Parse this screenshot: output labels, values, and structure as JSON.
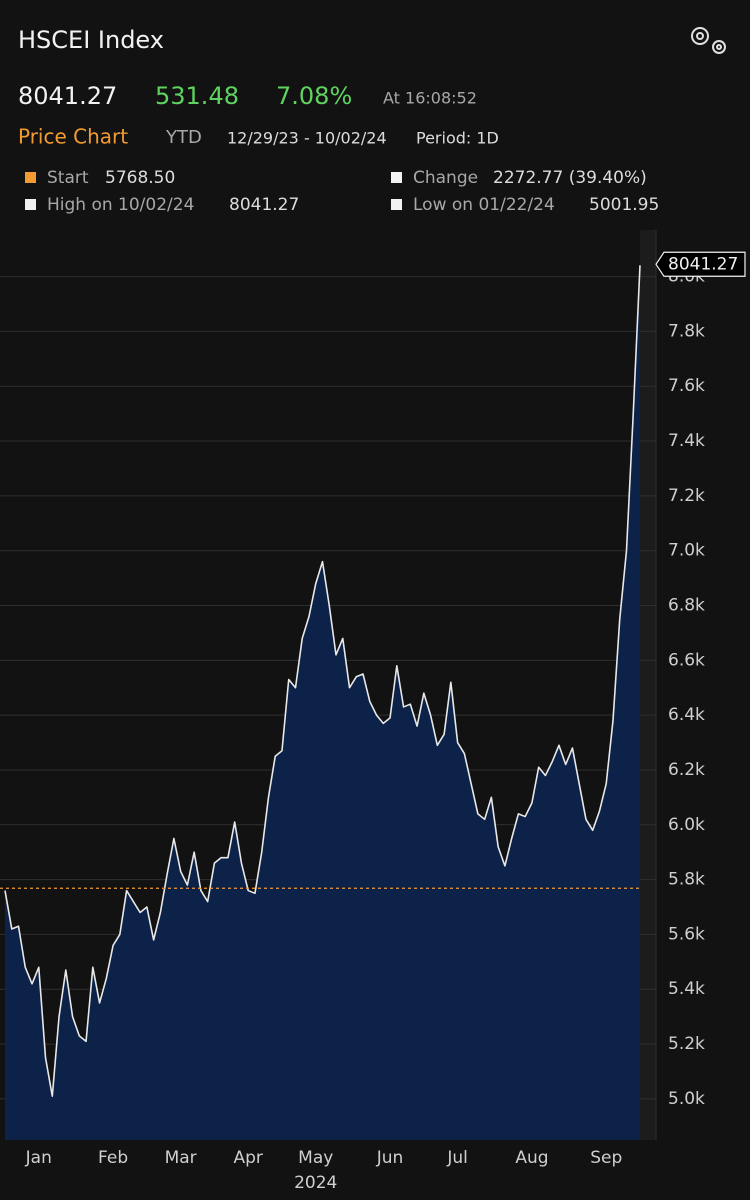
{
  "header": {
    "title": "HSCEI Index",
    "price": "8041.27",
    "change": "531.48",
    "pct_change": "7.08%",
    "time": "At 16:08:52",
    "tab": "Price Chart",
    "range": "YTD",
    "dates": "12/29/23 - 10/02/24",
    "period": "Period: 1D"
  },
  "stats": [
    {
      "name": "Start",
      "value": "5768.50"
    },
    {
      "name": "Change",
      "value": "2272.77 (39.40%)"
    },
    {
      "name": "High on 10/02/24",
      "value": "8041.27"
    },
    {
      "name": "Low on 01/22/24",
      "value": "5001.95"
    }
  ],
  "chart_data": {
    "type": "area",
    "color": "#e8e8e8",
    "fill": "#0c2248",
    "categories": [
      null,
      null,
      null,
      null,
      null,
      "Jan",
      null,
      null,
      null,
      null,
      null,
      null,
      null,
      null,
      null,
      null,
      "Feb",
      null,
      null,
      null,
      null,
      null,
      null,
      null,
      null,
      null,
      "Mar",
      null,
      null,
      null,
      null,
      null,
      null,
      null,
      null,
      null,
      "Apr",
      null,
      null,
      null,
      null,
      null,
      null,
      null,
      null,
      null,
      "May",
      null,
      null,
      null,
      null,
      null,
      null,
      null,
      null,
      null,
      null,
      "Jun",
      null,
      null,
      null,
      null,
      null,
      null,
      null,
      null,
      null,
      "Jul",
      null,
      null,
      null,
      null,
      null,
      null,
      null,
      null,
      null,
      null,
      "Aug",
      null,
      null,
      null,
      null,
      null,
      null,
      null,
      null,
      null,
      null,
      "Sep",
      null,
      null,
      null,
      null,
      null
    ],
    "values": [
      5760,
      5620,
      5630,
      5480,
      5420,
      5480,
      5150,
      5010,
      5300,
      5470,
      5300,
      5230,
      5210,
      5480,
      5350,
      5440,
      5560,
      5600,
      5760,
      5720,
      5680,
      5700,
      5580,
      5680,
      5820,
      5950,
      5830,
      5780,
      5900,
      5760,
      5720,
      5860,
      5880,
      5880,
      6010,
      5860,
      5760,
      5750,
      5900,
      6100,
      6250,
      6270,
      6530,
      6500,
      6680,
      6760,
      6880,
      6960,
      6800,
      6620,
      6680,
      6500,
      6540,
      6550,
      6450,
      6400,
      6370,
      6390,
      6580,
      6430,
      6440,
      6360,
      6480,
      6400,
      6290,
      6330,
      6520,
      6300,
      6260,
      6150,
      6040,
      6020,
      6100,
      5920,
      5850,
      5950,
      6040,
      6030,
      6080,
      6210,
      6180,
      6230,
      6290,
      6220,
      6280,
      6150,
      6020,
      5980,
      6050,
      6150,
      6380,
      6750,
      7000,
      7500,
      8041.27
    ],
    "year_label": "2024",
    "start_line": 5768.5,
    "last_label": "8041.27",
    "ylim": [
      4850,
      8170
    ],
    "yticks": [
      {
        "value": 5000,
        "label": "5.0k"
      },
      {
        "value": 5200,
        "label": "5.2k"
      },
      {
        "value": 5400,
        "label": "5.4k"
      },
      {
        "value": 5600,
        "label": "5.6k"
      },
      {
        "value": 5800,
        "label": "5.8k"
      },
      {
        "value": 6000,
        "label": "6.0k"
      },
      {
        "value": 6200,
        "label": "6.2k"
      },
      {
        "value": 6400,
        "label": "6.4k"
      },
      {
        "value": 6600,
        "label": "6.6k"
      },
      {
        "value": 6800,
        "label": "6.8k"
      },
      {
        "value": 7000,
        "label": "7.0k"
      },
      {
        "value": 7200,
        "label": "7.2k"
      },
      {
        "value": 7400,
        "label": "7.4k"
      },
      {
        "value": 7600,
        "label": "7.6k"
      },
      {
        "value": 7800,
        "label": "7.8k"
      },
      {
        "value": 8000,
        "label": "8.0k"
      }
    ],
    "grid": true
  }
}
